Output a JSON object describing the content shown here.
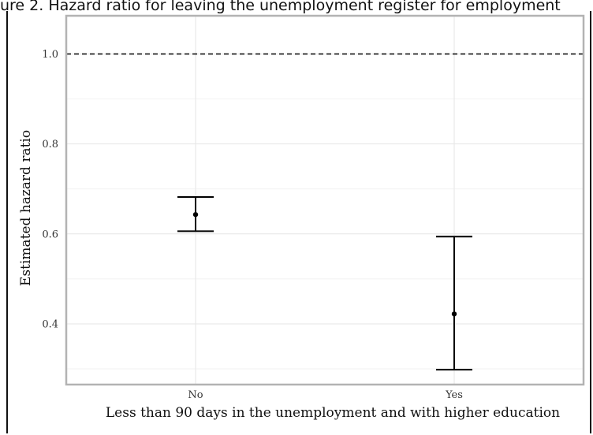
{
  "caption": {
    "label": "",
    "text": "ure 2. Hazard ratio for leaving the unemployment register for employment"
  },
  "chart_data": {
    "type": "errorbar",
    "title": "",
    "xlabel": "Less than 90 days in the unemployment and with higher education",
    "ylabel": "Estimated hazard ratio",
    "categories": [
      "No",
      "Yes"
    ],
    "estimates": [
      0.643,
      0.422
    ],
    "lower": [
      0.606,
      0.298
    ],
    "upper": [
      0.682,
      0.594
    ],
    "ylim": [
      0.265,
      1.085
    ],
    "yticks": [
      0.4,
      0.6,
      0.8,
      1.0
    ],
    "ytick_labels": [
      "0.4",
      "0.6",
      "0.8",
      "1.0"
    ],
    "reference_line": 1.0,
    "grid": true,
    "colors": {
      "grid_major": "#e6e6e6",
      "grid_minor": "#f2f2f2",
      "panel_border": "#b3b3b3",
      "marks": "#000000"
    }
  }
}
